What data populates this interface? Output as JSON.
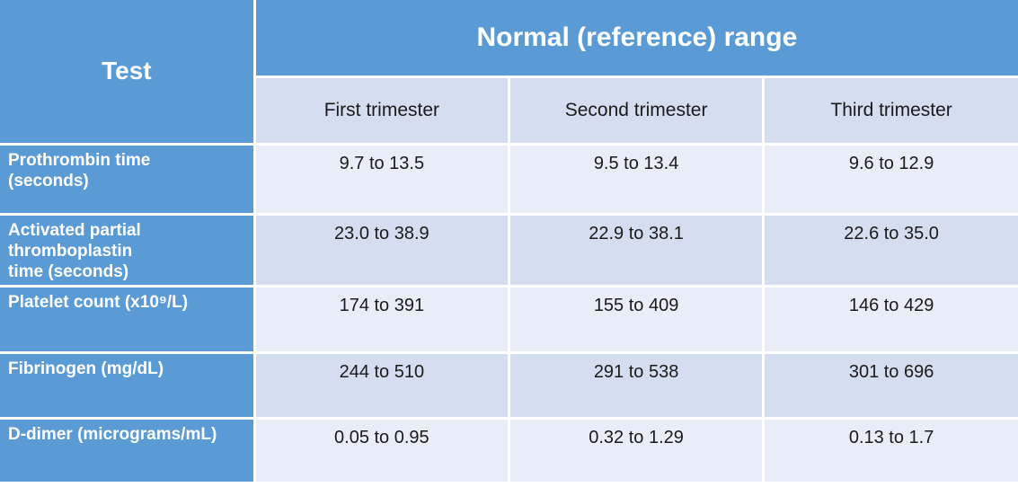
{
  "colors": {
    "accent_blue": "#5b9bd5",
    "band_light": "#e9edf8",
    "band_dark": "#d5def0",
    "header_text": "#ffffff",
    "body_text": "#1a1a1a",
    "grid_border": "#ffffff"
  },
  "table": {
    "corner_header": "Test",
    "group_header": "Normal (reference) range",
    "column_headers": [
      "First trimester",
      "Second trimester",
      "Third trimester"
    ],
    "rows": [
      {
        "test": "Prothrombin time\n(seconds)",
        "values": [
          "9.7 to 13.5",
          "9.5 to 13.4",
          "9.6 to 12.9"
        ]
      },
      {
        "test": "Activated partial\nthromboplastin\ntime (seconds)",
        "values": [
          "23.0 to 38.9",
          "22.9 to 38.1",
          "22.6 to 35.0"
        ]
      },
      {
        "test": "Platelet count (x10⁹/L)",
        "values": [
          "174 to 391",
          "155 to 409",
          "146 to 429"
        ]
      },
      {
        "test": "Fibrinogen (mg/dL)",
        "values": [
          "244 to 510",
          "291 to 538",
          "301 to 696"
        ]
      },
      {
        "test": "D-dimer (micrograms/mL)",
        "values": [
          "0.05 to 0.95",
          "0.32 to 1.29",
          "0.13 to 1.7"
        ]
      }
    ]
  }
}
